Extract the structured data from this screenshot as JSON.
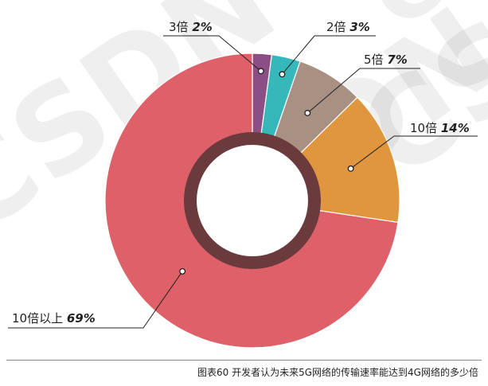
{
  "chart_data": {
    "type": "pie",
    "variant": "donut",
    "slices": [
      {
        "label": "3倍",
        "value": 2,
        "value_label": "2%",
        "color": "#8b4f86"
      },
      {
        "label": "2倍",
        "value": 3,
        "value_label": "3%",
        "color": "#36b8bb"
      },
      {
        "label": "5倍",
        "value": 7,
        "value_label": "7%",
        "color": "#a89183"
      },
      {
        "label": "10倍",
        "value": 14,
        "value_label": "14%",
        "color": "#e0963f"
      },
      {
        "label": "10倍以上",
        "value": 69,
        "value_label": "69%",
        "color": "#de6068"
      }
    ],
    "inner_ring_color": "#6b3a3c",
    "legend": "none"
  },
  "caption": "图表60 开发者认为未来5G网络的传输速率能达到4G网络的多少倍",
  "watermark": "CSDN"
}
